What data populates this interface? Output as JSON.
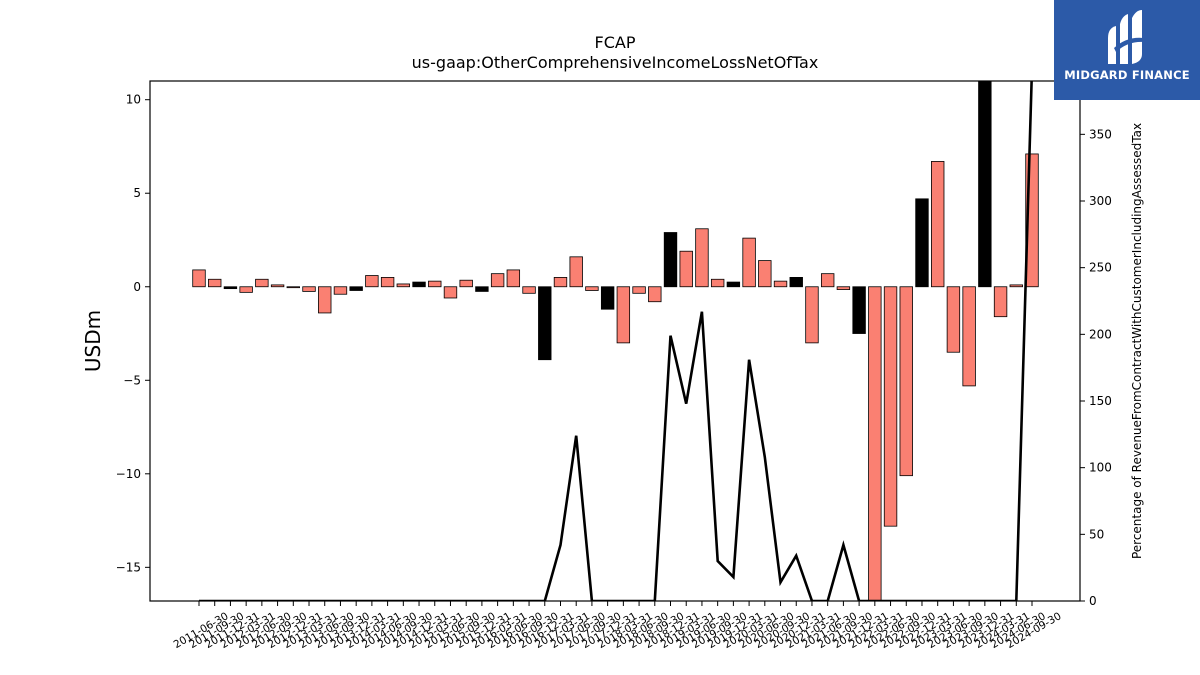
{
  "brand": {
    "name": "MIDGARD FINANCE",
    "icon": "midgard-logo-icon"
  },
  "chart_data": {
    "type": "bar",
    "title": "FCAP",
    "subtitle": "us-gaap:OtherComprehensiveIncomeLossNetOfTax",
    "ylabel": "USDm",
    "y2label": "Percentage of RevenueFromContractWithCustomerIncludingAssessedTax",
    "ylim": [
      -16.8,
      11.0
    ],
    "y2lim": [
      0,
      390
    ],
    "yticks": [
      10,
      5,
      0,
      -5,
      -10,
      -15
    ],
    "y2ticks": [
      0,
      50,
      100,
      150,
      200,
      250,
      300,
      350
    ],
    "colors": {
      "positive_change": "#fa8072",
      "negative_change": "#000000",
      "line": "#000000"
    },
    "categories": [
      "2011-06-30",
      "2011-09-30",
      "2011-12-31",
      "2012-03-31",
      "2012-06-30",
      "2012-09-30",
      "2012-12-31",
      "2013-03-31",
      "2013-06-30",
      "2013-09-30",
      "2013-12-31",
      "2014-03-31",
      "2014-06-30",
      "2014-09-30",
      "2014-12-31",
      "2015-03-31",
      "2015-06-30",
      "2015-09-30",
      "2015-12-31",
      "2016-03-31",
      "2016-06-30",
      "2016-09-30",
      "2016-12-31",
      "2017-03-31",
      "2017-06-30",
      "2017-09-30",
      "2017-12-31",
      "2018-03-31",
      "2018-06-30",
      "2018-09-30",
      "2018-12-31",
      "2019-03-31",
      "2019-06-30",
      "2019-09-30",
      "2019-12-31",
      "2020-03-31",
      "2020-06-30",
      "2020-09-30",
      "2020-12-31",
      "2021-03-31",
      "2021-06-30",
      "2021-09-30",
      "2021-12-31",
      "2022-03-31",
      "2022-06-30",
      "2022-09-30",
      "2022-12-31",
      "2023-03-31",
      "2023-06-30",
      "2023-09-30",
      "2023-12-31",
      "2024-03-31",
      "2024-06-30",
      "2024-09-30"
    ],
    "series": [
      {
        "kind": "bar",
        "values": [
          0.9,
          0.4,
          -0.1,
          -0.3,
          0.4,
          0.1,
          -0.05,
          -0.25,
          -1.4,
          -0.4,
          -0.2,
          0.6,
          0.5,
          0.15,
          0.25,
          0.3,
          -0.6,
          0.35,
          -0.25,
          0.7,
          0.9,
          -0.35,
          -3.9,
          0.5,
          1.6,
          -0.2,
          -1.2,
          -3.0,
          -0.35,
          -0.8,
          2.9,
          1.9,
          3.1,
          0.4,
          0.25,
          2.6,
          1.4,
          0.3,
          0.5,
          -3.0,
          0.7,
          -0.15,
          -2.5,
          -20.0,
          -12.8,
          -10.1,
          4.7,
          6.7,
          -3.5,
          -5.3,
          14.0,
          -1.6,
          0.1,
          7.1
        ],
        "bar_colors": [
          "positive_change",
          "positive_change",
          "negative_change",
          "positive_change",
          "positive_change",
          "positive_change",
          "positive_change",
          "positive_change",
          "positive_change",
          "positive_change",
          "negative_change",
          "positive_change",
          "positive_change",
          "positive_change",
          "negative_change",
          "positive_change",
          "positive_change",
          "positive_change",
          "negative_change",
          "positive_change",
          "positive_change",
          "positive_change",
          "negative_change",
          "positive_change",
          "positive_change",
          "positive_change",
          "negative_change",
          "positive_change",
          "positive_change",
          "positive_change",
          "negative_change",
          "positive_change",
          "positive_change",
          "positive_change",
          "negative_change",
          "positive_change",
          "positive_change",
          "positive_change",
          "negative_change",
          "positive_change",
          "positive_change",
          "positive_change",
          "negative_change",
          "positive_change",
          "positive_change",
          "positive_change",
          "negative_change",
          "positive_change",
          "positive_change",
          "positive_change",
          "negative_change",
          "positive_change",
          "positive_change",
          "positive_change"
        ]
      },
      {
        "kind": "line",
        "axis": "right",
        "values": [
          0,
          0,
          0,
          0,
          0,
          0,
          0,
          0,
          0,
          0,
          0,
          0,
          0,
          0,
          0,
          0,
          0,
          0,
          0,
          0,
          0,
          0,
          0,
          42,
          124,
          0,
          0,
          0,
          0,
          0,
          199,
          148,
          217,
          30,
          18,
          181,
          108,
          14,
          34,
          0,
          0,
          42,
          0,
          0,
          0,
          0,
          0,
          0,
          0,
          0,
          0,
          0,
          0,
          400
        ]
      }
    ]
  }
}
